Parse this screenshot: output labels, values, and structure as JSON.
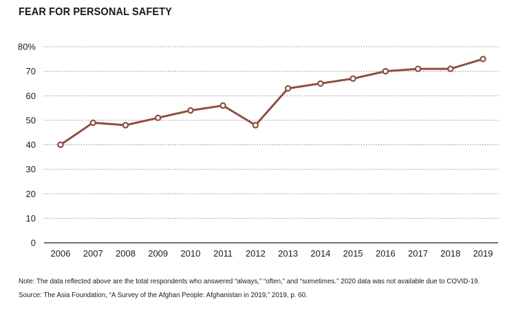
{
  "chart_data": {
    "type": "line",
    "title": "FEAR FOR PERSONAL SAFETY",
    "xlabel": "",
    "ylabel": "",
    "categories": [
      "2006",
      "2007",
      "2008",
      "2009",
      "2010",
      "2011",
      "2012",
      "2013",
      "2014",
      "2015",
      "2016",
      "2017",
      "2018",
      "2019"
    ],
    "series": [
      {
        "values": [
          40,
          49,
          48,
          51,
          54,
          56,
          48,
          63,
          65,
          67,
          70,
          71,
          71,
          75
        ],
        "color": "#8e4e3f"
      }
    ],
    "ylim": [
      0,
      80
    ],
    "yticks": [
      0,
      10,
      20,
      30,
      40,
      50,
      60,
      70,
      80
    ],
    "ytick_labels": [
      "0",
      "10",
      "20",
      "30",
      "40",
      "50",
      "60",
      "70",
      "80%"
    ],
    "grid": "dotted horizontal",
    "legend": "none"
  },
  "footer": {
    "note": "Note: The data reflected above are the total respondents who answered “always,” “often,” and “sometimes.” 2020 data was not available due to COVID-19.",
    "source": "Source: The Asia Foundation, “A Survey of the Afghan People: Afghanistan in 2019,” 2019, p. 60."
  }
}
